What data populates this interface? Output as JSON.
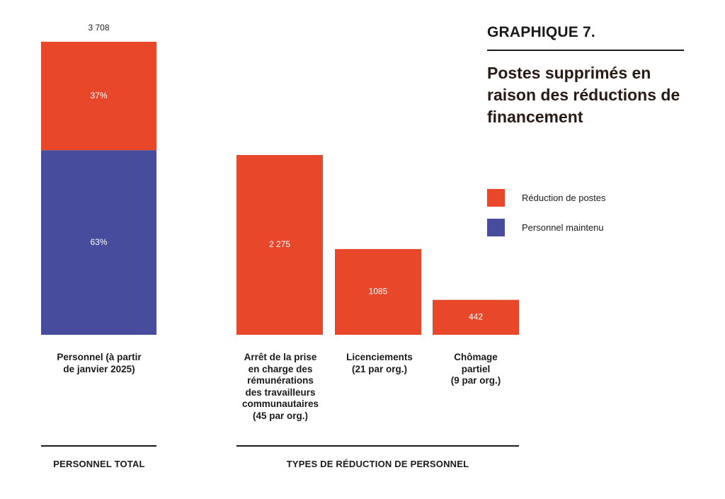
{
  "graph_label": "GRAPHIQUE 7.",
  "chart_data": {
    "type": "bar",
    "title": "Postes supprimés en raison des réductions de financement",
    "legend": [
      {
        "name": "Réduction de postes",
        "color": "#e8472a"
      },
      {
        "name": "Personnel maintenu",
        "color": "#474c9c"
      }
    ],
    "total_bar": {
      "category": "Personnel (à partir de janvier 2025)",
      "total": 3708,
      "total_label": "3 708",
      "segments": [
        {
          "series": "Personnel maintenu",
          "percent": 63,
          "label": "63%",
          "color": "#474c9c"
        },
        {
          "series": "Réduction de postes",
          "percent": 37,
          "label": "37%",
          "color": "#e8472a"
        }
      ]
    },
    "categories": [
      "Arrêt de la prise en charge des rémunérations des travailleurs communautaires (45 par org.)",
      "Licenciements (21 par org.)",
      "Chômage partiel (9 par org.)"
    ],
    "series": [
      {
        "name": "Réduction de postes",
        "values": [
          2275,
          1085,
          442
        ],
        "labels": [
          "2 275",
          "1085",
          "442"
        ],
        "color": "#e8472a"
      }
    ],
    "groups": [
      "PERSONNEL TOTAL",
      "TYPES DE RÉDUCTION DE PERSONNEL"
    ]
  },
  "category_labels": {
    "total": [
      "Personnel (à partir",
      "de janvier 2025)"
    ],
    "c0": [
      "Arrêt de la prise",
      "en charge des",
      "rémunérations",
      "des travailleurs",
      "communautaires",
      "(45 par org.)"
    ],
    "c1": [
      "Licenciements",
      "(21 par org.)"
    ],
    "c2": [
      "Chômage",
      "partiel",
      "(9 par org.)"
    ]
  }
}
